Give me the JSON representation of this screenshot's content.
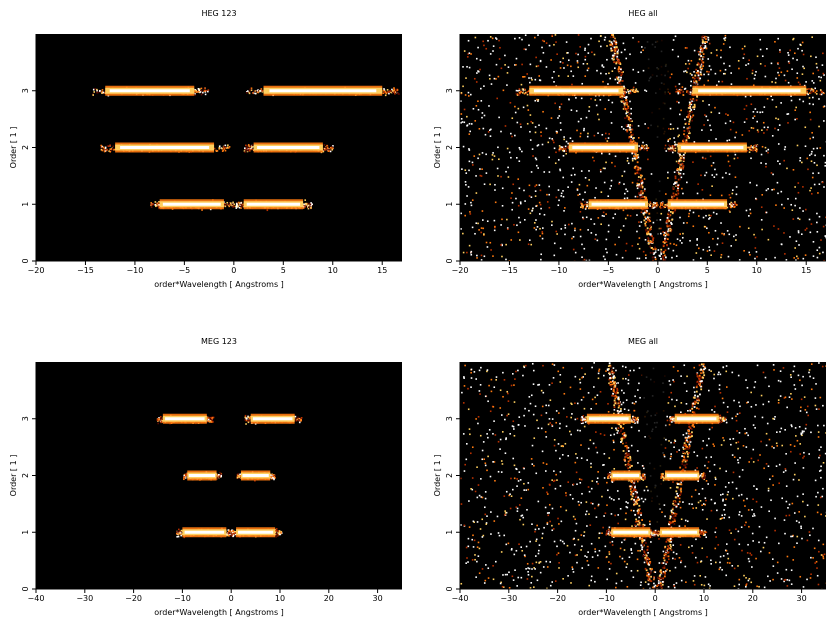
{
  "chart_data": [
    {
      "type": "heatmap",
      "title": "HEG 123",
      "xlabel": "order*Wavelength [ Angstroms ]",
      "ylabel": "Order [ 1 ]",
      "xlim": [
        -20,
        17
      ],
      "ylim": [
        0,
        4
      ],
      "xticks": [
        -20,
        -15,
        -10,
        -5,
        0,
        5,
        10,
        15
      ],
      "yticks": [
        0,
        1,
        2,
        3
      ],
      "colormap": [
        "#000000",
        "#5a0a00",
        "#b83000",
        "#ff7a10",
        "#ffd060",
        "#ffffff"
      ],
      "bands": [
        {
          "order": 3,
          "segments": [
            [
              -13,
              -4
            ],
            [
              3,
              15
            ]
          ]
        },
        {
          "order": 2,
          "segments": [
            [
              -12,
              -2
            ],
            [
              2,
              9
            ]
          ]
        },
        {
          "order": 1,
          "segments": [
            [
              -7.5,
              -1
            ],
            [
              1,
              7
            ]
          ]
        }
      ],
      "background": "none"
    },
    {
      "type": "heatmap",
      "title": "HEG all",
      "xlabel": "order*Wavelength [ Angstroms ]",
      "ylabel": "Order [ 1 ]",
      "xlim": [
        -20,
        17
      ],
      "ylim": [
        0,
        4
      ],
      "xticks": [
        -20,
        -15,
        -10,
        -5,
        0,
        5,
        10,
        15
      ],
      "yticks": [
        0,
        1,
        2,
        3
      ],
      "colormap": [
        "#000000",
        "#5a0a00",
        "#b83000",
        "#ff7a10",
        "#ffd060",
        "#ffffff"
      ],
      "bands": [
        {
          "order": 3,
          "segments": [
            [
              -13,
              -3.5
            ],
            [
              3.5,
              15
            ]
          ]
        },
        {
          "order": 2,
          "segments": [
            [
              -9,
              -2
            ],
            [
              2,
              9
            ]
          ]
        },
        {
          "order": 1,
          "segments": [
            [
              -7,
              -1
            ],
            [
              1,
              7
            ]
          ]
        }
      ],
      "background": "dense"
    },
    {
      "type": "heatmap",
      "title": "MEG 123",
      "xlabel": "order*Wavelength [ Angstroms ]",
      "ylabel": "Order [ 1 ]",
      "xlim": [
        -40,
        35
      ],
      "ylim": [
        0,
        4
      ],
      "xticks": [
        -40,
        -30,
        -20,
        -10,
        0,
        10,
        20,
        30
      ],
      "yticks": [
        0,
        1,
        2,
        3
      ],
      "colormap": [
        "#000000",
        "#5a0a00",
        "#b83000",
        "#ff7a10",
        "#ffd060",
        "#ffffff"
      ],
      "bands": [
        {
          "order": 3,
          "segments": [
            [
              -14,
              -5
            ],
            [
              4,
              13
            ]
          ]
        },
        {
          "order": 2,
          "segments": [
            [
              -9,
              -3
            ],
            [
              2,
              8
            ]
          ]
        },
        {
          "order": 1,
          "segments": [
            [
              -10,
              -1
            ],
            [
              1,
              9
            ]
          ]
        }
      ],
      "background": "none"
    },
    {
      "type": "heatmap",
      "title": "MEG all",
      "xlabel": "order*Wavelength [ Angstroms ]",
      "ylabel": "Order [ 1 ]",
      "xlim": [
        -40,
        35
      ],
      "ylim": [
        0,
        4
      ],
      "xticks": [
        -40,
        -30,
        -20,
        -10,
        0,
        10,
        20,
        30
      ],
      "yticks": [
        0,
        1,
        2,
        3
      ],
      "colormap": [
        "#000000",
        "#5a0a00",
        "#b83000",
        "#ff7a10",
        "#ffd060",
        "#ffffff"
      ],
      "bands": [
        {
          "order": 3,
          "segments": [
            [
              -14,
              -5
            ],
            [
              4,
              13
            ]
          ]
        },
        {
          "order": 2,
          "segments": [
            [
              -9,
              -3
            ],
            [
              2,
              9
            ]
          ]
        },
        {
          "order": 1,
          "segments": [
            [
              -9,
              -1
            ],
            [
              1,
              9
            ]
          ]
        }
      ],
      "background": "dense"
    }
  ]
}
